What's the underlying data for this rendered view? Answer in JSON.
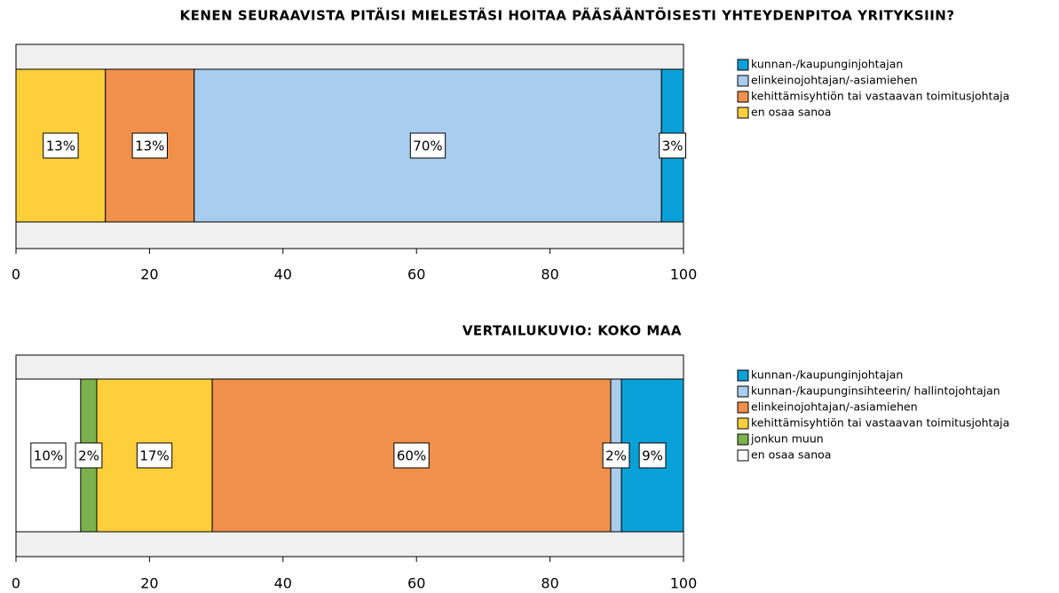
{
  "chart_data": [
    {
      "type": "stacked-bar-horizontal",
      "title": "KENEN SEURAAVISTA PITÄISI MIELESTÄSI HOITAA PÄÄSÄÄNTÖISESTI YHTEYDENPITOA YRITYKSIIN?",
      "xlim": [
        0,
        100
      ],
      "xticks": [
        0,
        20,
        40,
        60,
        80,
        100
      ],
      "series": [
        {
          "name": "kunnan-/kaupunginjohtajan",
          "color": "#0aa1d8",
          "values": [
            3.3
          ],
          "value_labels": [
            "3%"
          ]
        },
        {
          "name": "elinkeinojohtajan/-asiamiehen",
          "color": "#a9cdef",
          "values": [
            70.0
          ],
          "value_labels": [
            "70%"
          ]
        },
        {
          "name": "kehittämisyhtiön tai vastaavan toimitusjohtaja",
          "color": "#f0904b",
          "values": [
            13.3
          ],
          "value_labels": [
            "13%"
          ]
        },
        {
          "name": "en osaa sanoa",
          "color": "#fdcf3a",
          "values": [
            13.4
          ],
          "value_labels": [
            "13%"
          ]
        }
      ]
    },
    {
      "type": "stacked-bar-horizontal",
      "title": "VERTAILUKUVIO: KOKO MAA",
      "xlim": [
        0,
        100
      ],
      "xticks": [
        0,
        20,
        40,
        60,
        80,
        100
      ],
      "series": [
        {
          "name": "kunnan-/kaupunginjohtajan",
          "color": "#0aa1d8",
          "values": [
            9.3
          ],
          "value_labels": [
            "9%"
          ]
        },
        {
          "name": "kunnan-/kaupunginsihteerin/ hallintojohtajan",
          "color": "#a9cdef",
          "values": [
            1.6
          ],
          "value_labels": [
            "2%"
          ]
        },
        {
          "name": "elinkeinojohtajan/-asiamiehen",
          "color": "#f0904b",
          "values": [
            59.7
          ],
          "value_labels": [
            "60%"
          ]
        },
        {
          "name": "kehittämisyhtiön tai vastaavan toimitusjohtaja",
          "color": "#fdcf3a",
          "values": [
            17.3
          ],
          "value_labels": [
            "17%"
          ]
        },
        {
          "name": "jonkun muun",
          "color": "#7cb24e",
          "values": [
            2.4
          ],
          "value_labels": [
            "2%"
          ]
        },
        {
          "name": "en osaa sanoa",
          "color": "#ffffff",
          "values": [
            9.7
          ],
          "value_labels": [
            "10%"
          ]
        }
      ]
    }
  ]
}
